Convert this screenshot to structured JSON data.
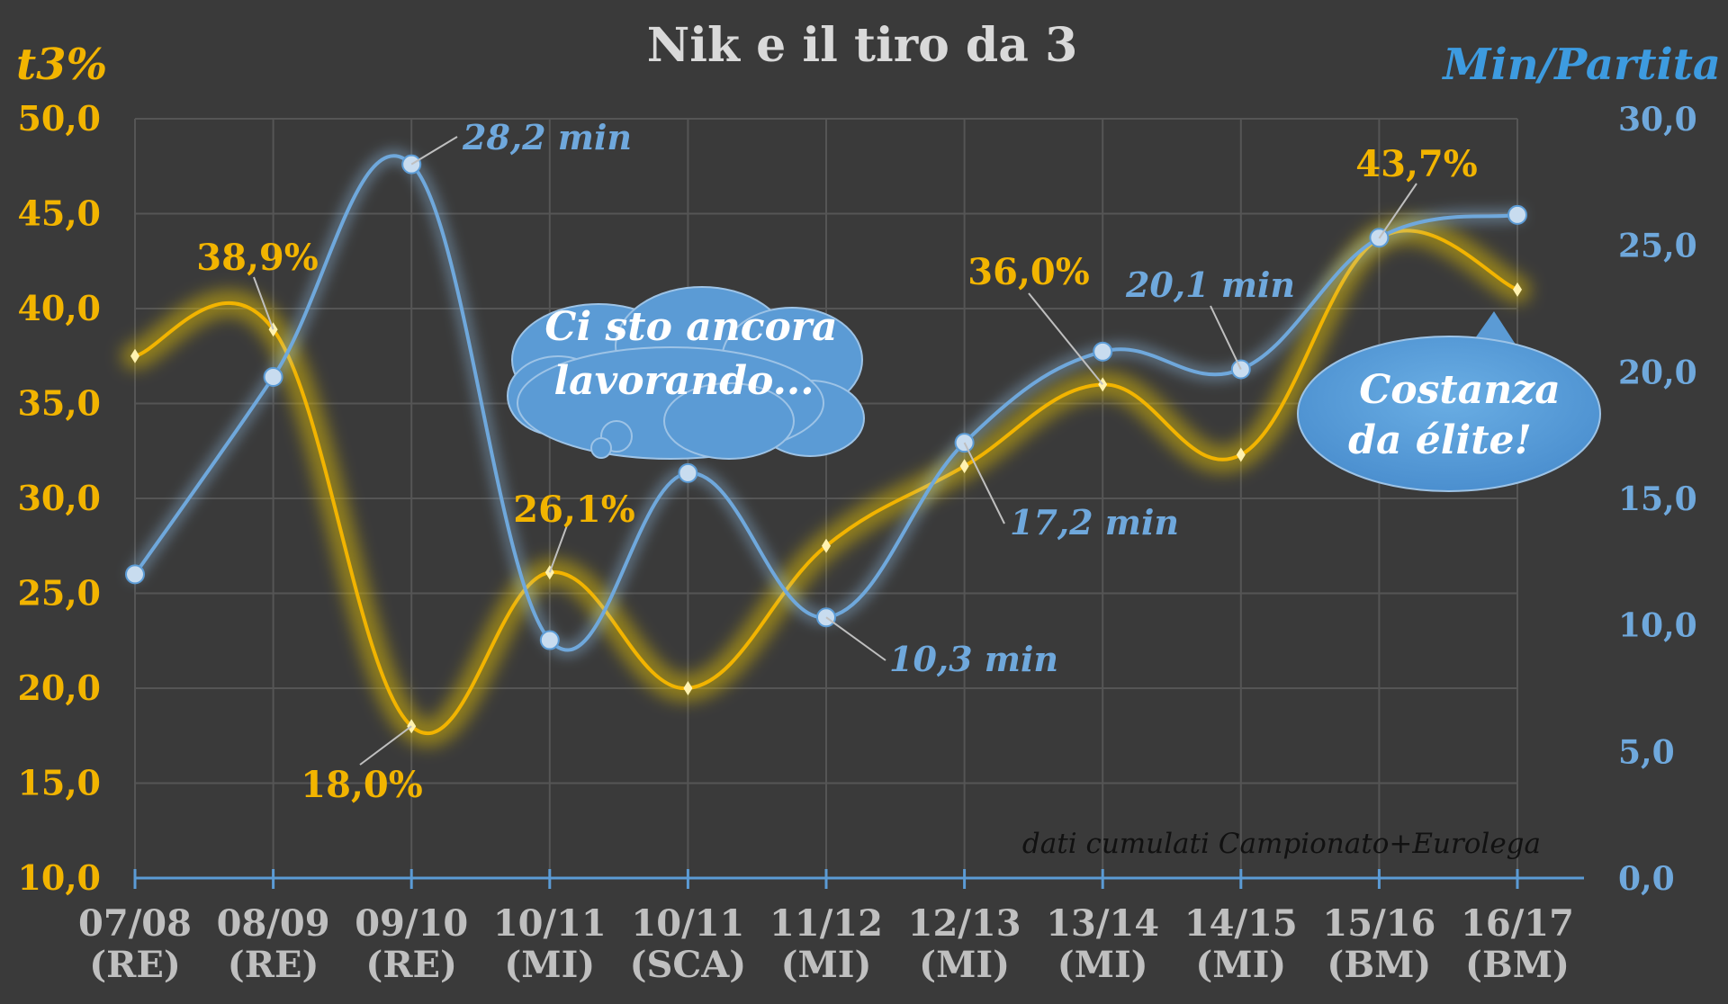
{
  "chart_data": {
    "type": "line",
    "title": "Nik e il tiro da 3",
    "ylabel_left": "t3%",
    "ylabel_right": "Min/Partita",
    "categories": [
      [
        "07/08",
        "(RE)"
      ],
      [
        "08/09",
        "(RE)"
      ],
      [
        "09/10",
        "(RE)"
      ],
      [
        "10/11",
        "(MI)"
      ],
      [
        "10/11",
        "(SCA)"
      ],
      [
        "11/12",
        "(MI)"
      ],
      [
        "12/13",
        "(MI)"
      ],
      [
        "13/14",
        "(MI)"
      ],
      [
        "14/15",
        "(MI)"
      ],
      [
        "15/16",
        "(BM)"
      ],
      [
        "16/17",
        "(BM)"
      ]
    ],
    "ylim_left": [
      10,
      50
    ],
    "ylim_right": [
      0,
      30
    ],
    "yticks_left": [
      "10,0",
      "15,0",
      "20,0",
      "25,0",
      "30,0",
      "35,0",
      "40,0",
      "45,0",
      "50,0"
    ],
    "yticks_right": [
      "0,0",
      "5,0",
      "10,0",
      "15,0",
      "20,0",
      "25,0",
      "30,0"
    ],
    "grid": true,
    "series": [
      {
        "name": "t3%",
        "axis": "left",
        "color": "#f2b400",
        "values": [
          37.5,
          38.9,
          18.0,
          26.1,
          20.0,
          27.5,
          31.7,
          36.0,
          32.3,
          43.7,
          41.0
        ]
      },
      {
        "name": "Min/Partita",
        "axis": "right",
        "color": "#6fa8dc",
        "values": [
          12.0,
          19.8,
          28.2,
          9.4,
          16.0,
          10.3,
          17.2,
          20.8,
          20.1,
          25.3,
          26.2
        ]
      }
    ],
    "annotations": [
      {
        "series": "t3%",
        "index": 1,
        "text": "38,9%"
      },
      {
        "series": "t3%",
        "index": 2,
        "text": "18,0%"
      },
      {
        "series": "t3%",
        "index": 3,
        "text": "26,1%"
      },
      {
        "series": "t3%",
        "index": 7,
        "text": "36,0%"
      },
      {
        "series": "t3%",
        "index": 9,
        "text": "43,7%"
      },
      {
        "series": "Min/Partita",
        "index": 2,
        "text": "28,2 min"
      },
      {
        "series": "Min/Partita",
        "index": 5,
        "text": "10,3 min"
      },
      {
        "series": "Min/Partita",
        "index": 6,
        "text": "17,2 min"
      },
      {
        "series": "Min/Partita",
        "index": 8,
        "text": "20,1 min"
      }
    ],
    "callouts": {
      "thought": [
        "Ci sto ancora",
        "lavorando..."
      ],
      "speech": [
        "Costanza",
        "da élite!"
      ]
    },
    "source_note": "dati cumulati Campionato+Eurolega"
  }
}
